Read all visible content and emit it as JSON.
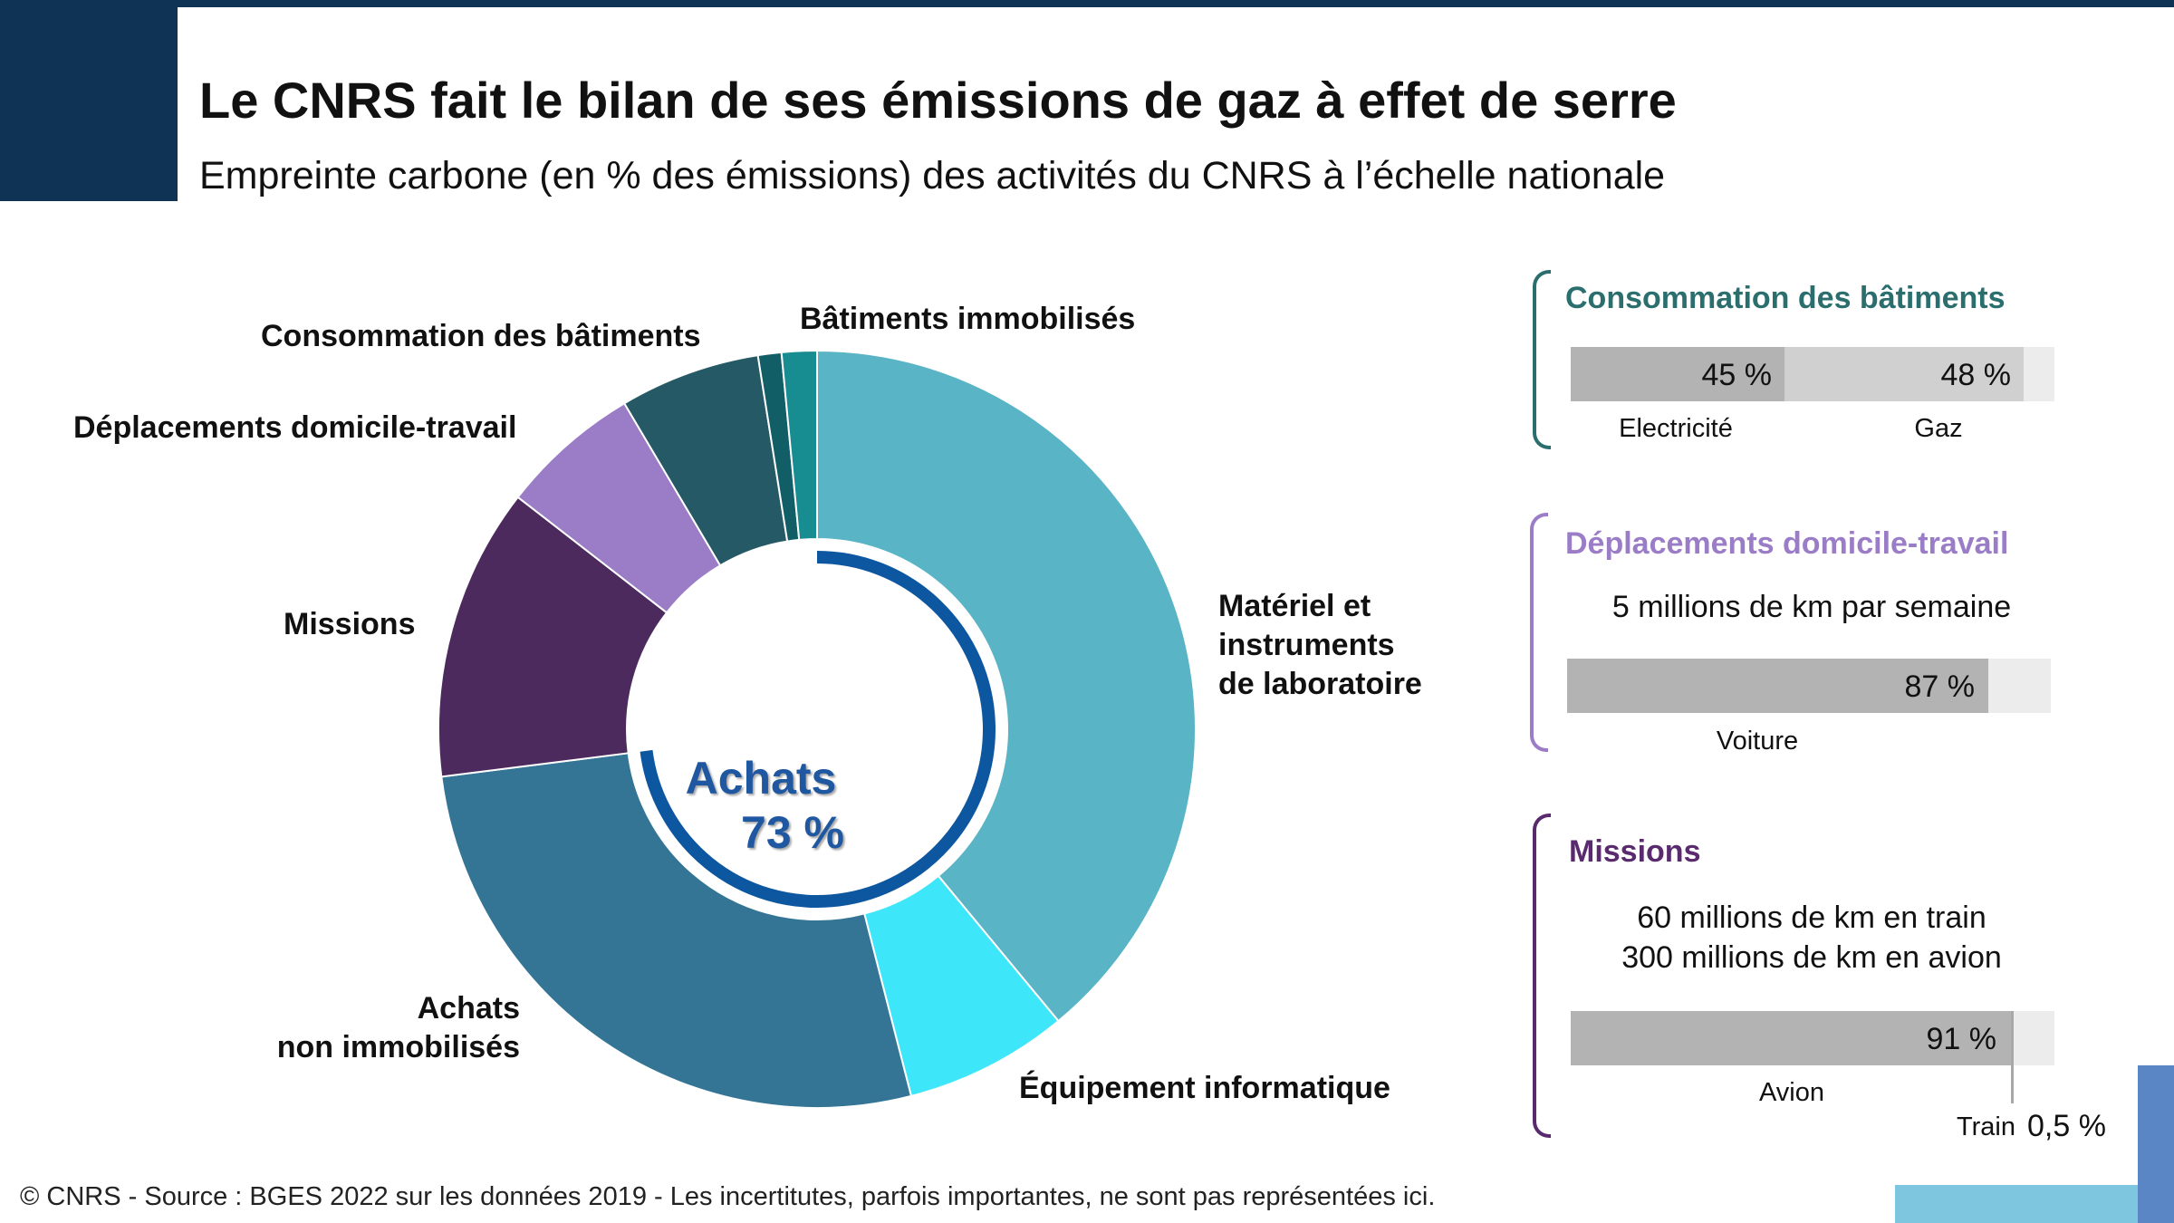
{
  "header": {
    "title": "Le CNRS fait le bilan de ses émissions de gaz à effet de serre",
    "subtitle": "Empreinte carbone (en % des émissions) des activités du CNRS à l’échelle nationale"
  },
  "chart_data": {
    "type": "pie",
    "donut": true,
    "center_label": [
      "Achats",
      "73 %"
    ],
    "center_arc_group": "Achats",
    "slices": [
      {
        "label": "Matériel et instruments de laboratoire",
        "value": 39.0,
        "color": "#59b4c6"
      },
      {
        "label": "Équipement informatique",
        "value": 7.0,
        "color": "#3de6f9"
      },
      {
        "label": "Achats non immobilisés",
        "value": 27.0,
        "color": "#347596"
      },
      {
        "label": "Missions",
        "value": 12.5,
        "color": "#4d2a5d"
      },
      {
        "label": "Déplacements domicile-travail",
        "value": 6.0,
        "color": "#9a7dc6"
      },
      {
        "label": "Consommation des bâtiments",
        "value": 6.0,
        "color": "#265966"
      },
      {
        "label": "",
        "value": 1.0,
        "color": "#115e67"
      },
      {
        "label": "Bâtiments immobilisés",
        "value": 1.5,
        "color": "#178c91"
      }
    ],
    "labels_shown": {
      "materiel": [
        "Matériel et",
        "instruments",
        "de laboratoire"
      ],
      "equipement": "Équipement informatique",
      "achats_non": [
        "Achats",
        "non immobilisés"
      ],
      "missions": "Missions",
      "deplacements": "Déplacements domicile-travail",
      "consommation": "Consommation des bâtiments",
      "batiments": "Bâtiments immobilisés"
    }
  },
  "panels": {
    "consommation": {
      "title": "Consommation des bâtiments",
      "color": "#2b6e6e",
      "bars": [
        {
          "label": "Electricité",
          "value": 45,
          "display": "45 %",
          "color": "#b3b3b3"
        },
        {
          "label": "Gaz",
          "value": 48,
          "display": "48 %",
          "color": "#d0d0d0"
        }
      ]
    },
    "deplacements": {
      "title": "Déplacements domicile-travail",
      "color": "#9a7dc6",
      "text": "5 millions de km par semaine",
      "bars": [
        {
          "label": "Voiture",
          "value": 87,
          "display": "87 %",
          "color": "#b3b3b3"
        }
      ]
    },
    "missions": {
      "title": "Missions",
      "color": "#5a2a6e",
      "text1": "60 millions de km en train",
      "text2": "300 millions de km en avion",
      "bars": [
        {
          "label": "Avion",
          "value": 91,
          "display": "91 %",
          "color": "#b3b3b3"
        },
        {
          "label": "Train",
          "value": 0.5,
          "display": "0,5 %",
          "color": "#a8a8a8"
        }
      ]
    }
  },
  "footer": {
    "source": "© CNRS - Source : BGES 2022 sur les données 2019 - Les incertitutes, parfois importantes, ne sont pas représentées ici."
  }
}
